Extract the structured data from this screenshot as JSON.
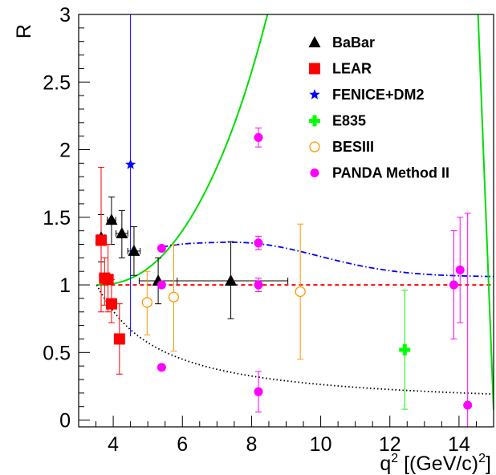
{
  "chart_data": {
    "type": "scatter",
    "title": "",
    "xlabel_main": "q",
    "xlabel_sup": "2",
    "xlabel_rest": " [(GeV/c)",
    "xlabel_sup2": "2",
    "xlabel_end": "]",
    "ylabel": "R",
    "xlim": [
      3,
      15
    ],
    "ylim": [
      -0.05,
      3
    ],
    "x_ticks": [
      4,
      6,
      8,
      10,
      12,
      14
    ],
    "y_ticks": [
      0,
      0.5,
      1,
      1.5,
      2,
      2.5,
      3
    ],
    "y_tick_labels": [
      "0",
      "0.5",
      "1",
      "1.5",
      "2",
      "2.5",
      "3"
    ],
    "grid": false,
    "legend_position": "top-right",
    "series": [
      {
        "name": "BaBar",
        "marker": "triangle",
        "color": "#000000",
        "points": [
          {
            "x": 3.65,
            "y": 1.35,
            "xerr": 0.1,
            "ylo": 1.17,
            "yhi": 1.52
          },
          {
            "x": 3.95,
            "y": 1.48,
            "xerr": 0.12,
            "ylo": 1.3,
            "yhi": 1.65
          },
          {
            "x": 4.25,
            "y": 1.38,
            "xerr": 0.17,
            "ylo": 1.2,
            "yhi": 1.55
          },
          {
            "x": 4.6,
            "y": 1.25,
            "xerr": 0.18,
            "ylo": 1.07,
            "yhi": 1.43
          },
          {
            "x": 5.3,
            "y": 1.03,
            "xerr": 0.55,
            "ylo": 0.86,
            "yhi": 1.2
          },
          {
            "x": 7.4,
            "y": 1.03,
            "xerr": 1.65,
            "ylo": 0.75,
            "yhi": 1.32
          }
        ]
      },
      {
        "name": "LEAR",
        "marker": "square",
        "color": "#ff0000",
        "points": [
          {
            "x": 3.65,
            "y": 1.33,
            "ylo": 0.8,
            "yhi": 1.87
          },
          {
            "x": 3.75,
            "y": 1.05,
            "ylo": 0.85,
            "yhi": 1.2
          },
          {
            "x": 3.85,
            "y": 1.04,
            "ylo": 0.8,
            "yhi": 1.3
          },
          {
            "x": 3.95,
            "y": 0.86,
            "ylo": 0.72,
            "yhi": 1.04
          },
          {
            "x": 4.18,
            "y": 0.6,
            "ylo": 0.34,
            "yhi": 0.86
          }
        ]
      },
      {
        "name": "FENICE+DM2",
        "marker": "star",
        "color": "#0000ff",
        "points": [
          {
            "x": 4.5,
            "y": 1.89,
            "ylo": 0.62,
            "yhi": 3.0
          }
        ]
      },
      {
        "name": "E835",
        "marker": "cross",
        "color": "#00ff00",
        "points": [
          {
            "x": 12.43,
            "y": 0.52,
            "ylo": 0.08,
            "yhi": 0.96
          }
        ]
      },
      {
        "name": "BESIII",
        "marker": "open-circle",
        "color": "#ff9900",
        "points": [
          {
            "x": 4.98,
            "y": 0.87,
            "ylo": 0.63,
            "yhi": 1.1
          },
          {
            "x": 5.75,
            "y": 0.91,
            "ylo": 0.51,
            "yhi": 1.3
          },
          {
            "x": 9.41,
            "y": 0.95,
            "ylo": 0.45,
            "yhi": 1.45
          }
        ]
      },
      {
        "name": "PANDA Method II",
        "marker": "filled-circle",
        "color": "#ff00ff",
        "points": [
          {
            "x": 5.4,
            "y": 1.27,
            "ylo": 1.26,
            "yhi": 1.28
          },
          {
            "x": 5.4,
            "y": 1.0,
            "ylo": 0.98,
            "yhi": 1.02
          },
          {
            "x": 5.4,
            "y": 0.39,
            "ylo": 0.38,
            "yhi": 0.4
          },
          {
            "x": 8.2,
            "y": 2.09,
            "ylo": 2.02,
            "yhi": 2.16
          },
          {
            "x": 8.2,
            "y": 1.31,
            "ylo": 1.26,
            "yhi": 1.36
          },
          {
            "x": 8.2,
            "y": 1.0,
            "ylo": 0.95,
            "yhi": 1.05
          },
          {
            "x": 8.2,
            "y": 0.21,
            "ylo": 0.06,
            "yhi": 0.36
          },
          {
            "x": 13.85,
            "y": 1.0,
            "ylo": 0.6,
            "yhi": 1.4
          },
          {
            "x": 14.03,
            "y": 1.11,
            "ylo": 0.72,
            "yhi": 1.5
          },
          {
            "x": 14.25,
            "y": 0.11,
            "ylo": -0.05,
            "yhi": 1.53
          }
        ]
      }
    ],
    "curves": [
      {
        "name": "",
        "style": "dashed",
        "color": "#ff0000",
        "func": "const1"
      },
      {
        "name": "",
        "style": "solid",
        "color": "#00dd00",
        "func": "rising"
      },
      {
        "name": "",
        "style": "dotted",
        "color": "#000000",
        "func": "falling"
      },
      {
        "name": "",
        "style": "dash-dot",
        "color": "#0000ff",
        "func": "hump"
      }
    ]
  }
}
